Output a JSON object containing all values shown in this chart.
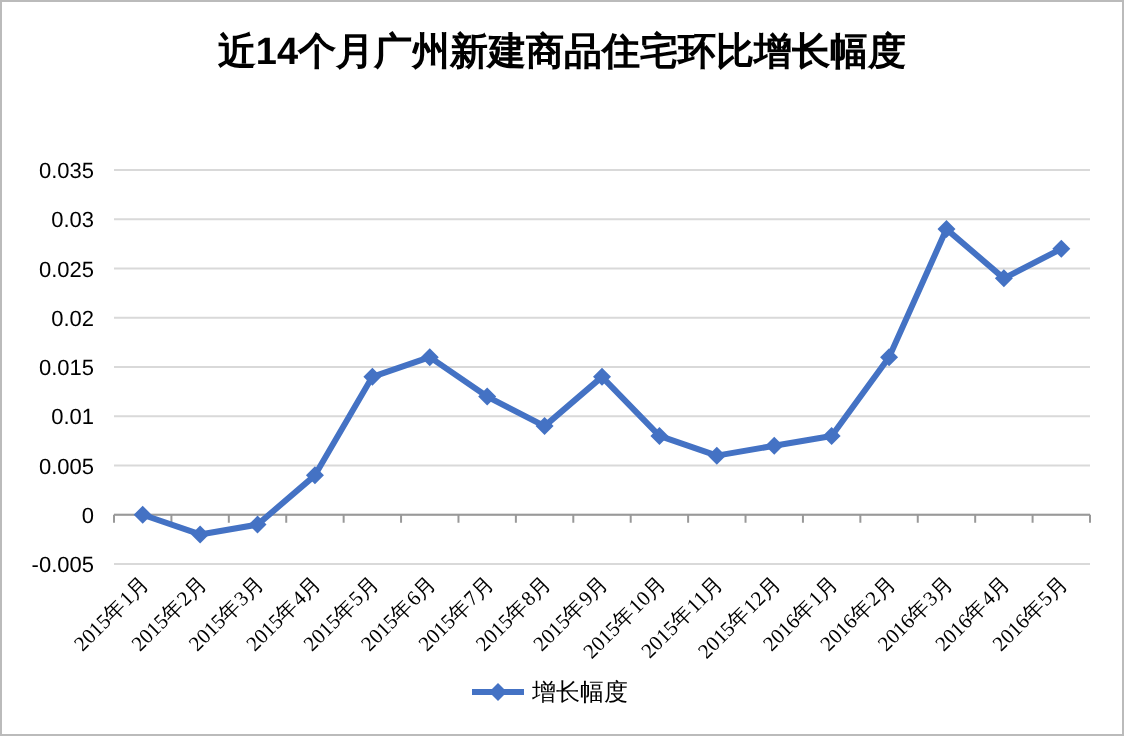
{
  "chart_data": {
    "type": "line",
    "title": "近14个月广州新建商品住宅环比增长幅度",
    "categories": [
      "2015年1月",
      "2015年2月",
      "2015年3月",
      "2015年4月",
      "2015年5月",
      "2015年6月",
      "2015年7月",
      "2015年8月",
      "2015年9月",
      "2015年10月",
      "2015年11月",
      "2015年12月",
      "2016年1月",
      "2016年2月",
      "2016年3月",
      "2016年4月",
      "2016年5月"
    ],
    "series": [
      {
        "name": "增长幅度",
        "color": "#4472c4",
        "values": [
          0,
          -0.002,
          -0.001,
          0.004,
          0.014,
          0.016,
          0.012,
          0.009,
          0.014,
          0.008,
          0.006,
          0.007,
          0.008,
          0.016,
          0.029,
          0.024,
          0.027
        ]
      }
    ],
    "ylim": [
      -0.005,
      0.035
    ],
    "yticks": [
      -0.005,
      0,
      0.005,
      0.01,
      0.015,
      0.02,
      0.025,
      0.03,
      0.035
    ],
    "grid": "y",
    "legend": "bottom",
    "marker": "diamond",
    "line_style": "solid"
  }
}
